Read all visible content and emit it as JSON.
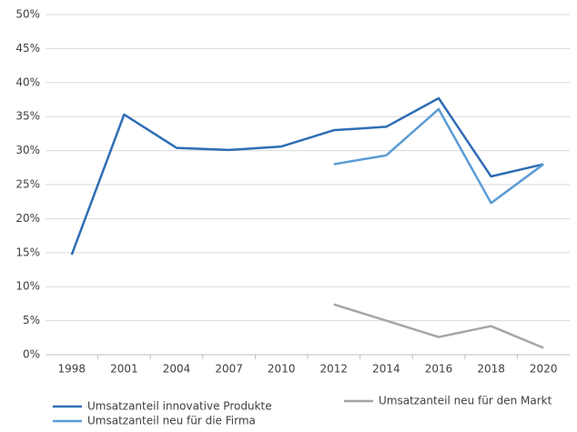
{
  "chart_data": {
    "type": "line",
    "categories": [
      "1998",
      "2001",
      "2004",
      "2007",
      "2010",
      "2012",
      "2014",
      "2016",
      "2018",
      "2020"
    ],
    "series": [
      {
        "name": "Umsatzanteil innovative Produkte",
        "color": "#2e6db4",
        "values": [
          14.7,
          35.3,
          30.4,
          30.1,
          30.6,
          33.0,
          33.5,
          37.7,
          26.2,
          28.0
        ]
      },
      {
        "name": "Umsatzanteil neu für die Firma",
        "color": "#5b9bd5",
        "values": [
          null,
          null,
          null,
          null,
          null,
          28.0,
          29.3,
          36.1,
          22.3,
          28.0
        ]
      },
      {
        "name": "Umsatzanteil neu für den Markt",
        "color": "#a6a6a6",
        "values": [
          null,
          null,
          null,
          null,
          null,
          7.4,
          5.0,
          2.6,
          4.2,
          1.0
        ]
      }
    ],
    "ylim": [
      0,
      50
    ],
    "yticks": [
      {
        "value": 0,
        "label": "0%"
      },
      {
        "value": 5,
        "label": "5%"
      },
      {
        "value": 10,
        "label": "10%"
      },
      {
        "value": 15,
        "label": "15%"
      },
      {
        "value": 20,
        "label": "20%"
      },
      {
        "value": 25,
        "label": "25%"
      },
      {
        "value": 30,
        "label": "30%"
      },
      {
        "value": 35,
        "label": "35%"
      },
      {
        "value": 40,
        "label": "40%"
      },
      {
        "value": 45,
        "label": "45%"
      },
      {
        "value": 50,
        "label": "50%"
      }
    ],
    "grid": true
  }
}
